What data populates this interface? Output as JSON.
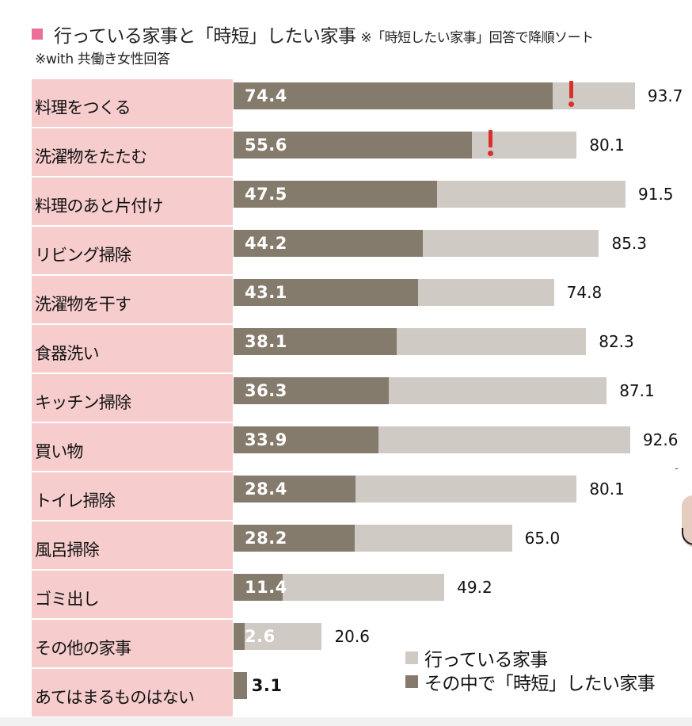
{
  "header": {
    "title": "行っている家事と「時短」したい家事",
    "note": "※「時短したい家事」回答で降順ソート",
    "subtitle": "※with 共働き女性回答",
    "accent_color": "#ec6f98"
  },
  "legend": {
    "items": [
      {
        "label": "行っている家事",
        "color": "#cfcac4"
      },
      {
        "label": "その中で「時短」したい家事",
        "color": "#857b6c"
      }
    ]
  },
  "chart_data": {
    "type": "bar",
    "orientation": "horizontal",
    "title": "行っている家事と「時短」したい家事",
    "xlabel": "",
    "ylabel": "",
    "xlim": [
      0,
      100
    ],
    "grid": false,
    "legend_position": "bottom-right",
    "categories": [
      "料理をつくる",
      "洗濯物をたたむ",
      "料理のあと片付け",
      "リビング掃除",
      "洗濯物を干す",
      "食器洗い",
      "キッチン掃除",
      "買い物",
      "トイレ掃除",
      "風呂掃除",
      "ゴミ出し",
      "その他の家事",
      "あてはまるものはない"
    ],
    "series": [
      {
        "name": "行っている家事",
        "color": "#cfcac4",
        "values": [
          93.7,
          80.1,
          91.5,
          85.3,
          74.8,
          82.3,
          87.1,
          92.6,
          80.1,
          65.0,
          49.2,
          20.6,
          null
        ]
      },
      {
        "name": "その中で「時短」したい家事",
        "color": "#857b6c",
        "values": [
          74.4,
          55.6,
          47.5,
          44.2,
          43.1,
          38.1,
          36.3,
          33.9,
          28.4,
          28.2,
          11.4,
          2.6,
          3.1
        ]
      }
    ],
    "total_labels": [
      "93.7",
      "80.1",
      "91.5",
      "85.3",
      "74.8",
      "82.3",
      "87.1",
      "92.6",
      "80.1",
      "65.0",
      "49.2",
      "20.6",
      ""
    ],
    "short_labels": [
      "74.4",
      "55.6",
      "47.5",
      "44.2",
      "43.1",
      "38.1",
      "36.3",
      "33.9",
      "28.4",
      "28.2",
      "11.4",
      "2.6",
      "3.1"
    ],
    "annotations": [
      {
        "category": "料理をつくる",
        "marker": "exclamation",
        "color": "#d9302c",
        "at_value": 78.3
      },
      {
        "category": "洗濯物をたたむ",
        "marker": "exclamation",
        "color": "#d9302c",
        "at_value": 59.5
      }
    ]
  }
}
